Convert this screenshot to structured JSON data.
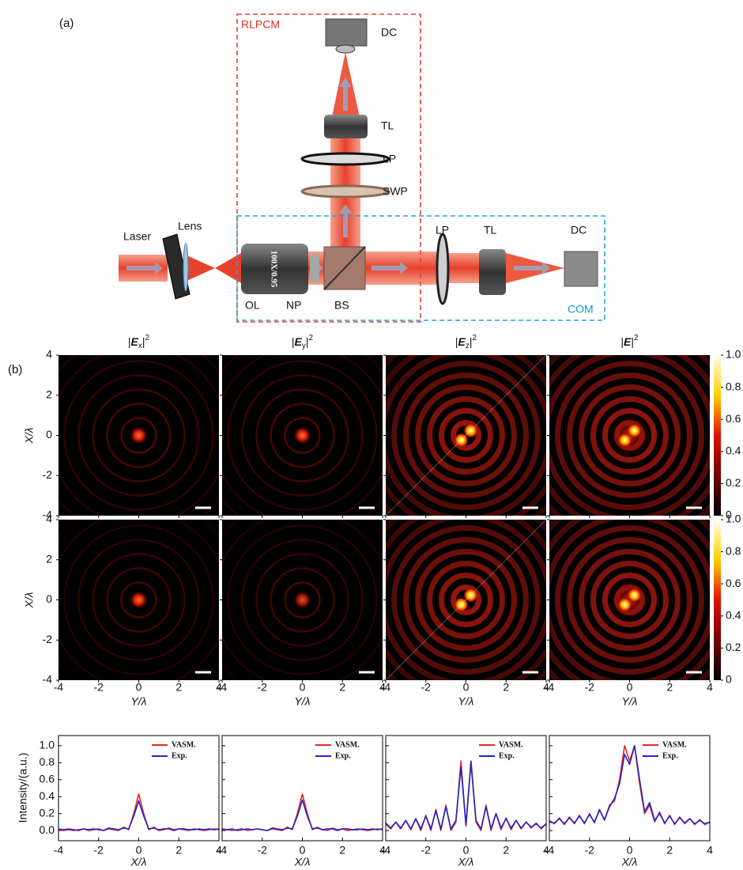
{
  "panel_a": {
    "label": "(a)",
    "rlpcm": "RLPCM",
    "com": "COM",
    "objective_text": "100X/0.95",
    "components": {
      "dc_top": "DC",
      "tl_top": "TL",
      "lp_top": "LP",
      "swp": "SWP",
      "laser": "Laser",
      "lens": "Lens",
      "ol": "OL",
      "np": "NP",
      "bs": "BS",
      "lp_right": "LP",
      "tl_right": "TL",
      "dc_right": "DC"
    }
  },
  "panel_b": {
    "label": "(b)",
    "columns": [
      {
        "bar": "|",
        "symbol": "E",
        "sub": "x",
        "sup": "2"
      },
      {
        "bar": "|",
        "symbol": "E",
        "sub": "y",
        "sup": "2"
      },
      {
        "bar": "|",
        "symbol": "E",
        "sub": "z",
        "sup": "2"
      },
      {
        "bar": "|",
        "symbol": "E",
        "sup": "2"
      }
    ],
    "heatmap_axes": {
      "xlabel": "Y/λ",
      "ylabel": "X/λ",
      "xlim": [
        -4,
        4
      ],
      "ylim": [
        -4,
        4
      ],
      "xticks": [
        -4,
        -2,
        0,
        2,
        4
      ],
      "yticks": [
        4,
        2,
        0,
        -2,
        -4
      ]
    },
    "colorbar": {
      "lim": [
        0,
        1
      ],
      "ticks": [
        {
          "value": 1,
          "label": "1.0"
        },
        0.8,
        0.6,
        0.4,
        0.2,
        0
      ]
    },
    "profiles": {
      "ylabel": "Intensity/(a.u.)",
      "xlabel": "X/λ",
      "xlim": [
        -4,
        4
      ],
      "ylim": [
        -0.12,
        1.12
      ],
      "xticks": [
        -4,
        -2,
        0,
        2,
        4
      ],
      "yticks": [
        {
          "value": 1,
          "label": "1.0"
        },
        0.8,
        0.6,
        0.4,
        0.2,
        {
          "value": 0,
          "label": "0.0"
        }
      ],
      "x": [
        -4,
        -3.75,
        -3.5,
        -3.25,
        -3,
        -2.75,
        -2.5,
        -2.25,
        -2,
        -1.75,
        -1.5,
        -1.25,
        -1,
        -0.75,
        -0.5,
        -0.25,
        0,
        0.25,
        0.5,
        0.75,
        1,
        1.25,
        1.5,
        1.75,
        2,
        2.25,
        2.5,
        2.75,
        3,
        3.25,
        3.5,
        3.75,
        4
      ],
      "plots": [
        {
          "series": [
            {
              "name": "VASM.",
              "color": "#e8261e",
              "values": [
                0.01,
                0,
                0.01,
                0,
                0.01,
                0.02,
                0,
                0.01,
                0.02,
                0,
                0.02,
                0.01,
                0,
                0.04,
                0.01,
                0.2,
                0.43,
                0.2,
                0.01,
                0.04,
                0,
                0.01,
                0.03,
                0.01,
                0.02,
                0.01,
                0,
                0.02,
                0.01,
                0,
                0.01,
                0.02,
                0.01
              ]
            },
            {
              "name": "Exp.",
              "color": "#2323c8",
              "values": [
                0.02,
                0.01,
                0.02,
                0.01,
                0,
                0.02,
                0.01,
                0.02,
                0.01,
                0,
                0.03,
                0.02,
                0.01,
                0.03,
                0.02,
                0.17,
                0.35,
                0.17,
                0.02,
                0.03,
                0.01,
                0.02,
                0.02,
                0,
                0.02,
                0.02,
                0.01,
                0.01,
                0.02,
                0.01,
                0.02,
                0.01,
                0.02
              ]
            }
          ]
        },
        {
          "series": [
            {
              "name": "VASM.",
              "color": "#e8261e",
              "values": [
                0.01,
                0.01,
                0,
                0.01,
                0.02,
                0,
                0.01,
                0.02,
                0.01,
                0,
                0.02,
                0.01,
                0,
                0.04,
                0.01,
                0.2,
                0.43,
                0.2,
                0.01,
                0.04,
                0.01,
                0,
                0.03,
                0.01,
                0.02,
                0,
                0.01,
                0.02,
                0.01,
                0,
                0.01,
                0.02,
                0.01
              ]
            },
            {
              "name": "Exp.",
              "color": "#2323c8",
              "values": [
                0.02,
                0.01,
                0.02,
                0,
                0.01,
                0.02,
                0.01,
                0.02,
                0.01,
                0,
                0.03,
                0.02,
                0.01,
                0.03,
                0.02,
                0.17,
                0.36,
                0.17,
                0.02,
                0.03,
                0.01,
                0.02,
                0.02,
                0,
                0.02,
                0.02,
                0.01,
                0.01,
                0.02,
                0.01,
                0.02,
                0.01,
                0.02
              ]
            }
          ]
        },
        {
          "series": [
            {
              "name": "VASM.",
              "color": "#e8261e",
              "values": [
                0.08,
                0.02,
                0.1,
                0.02,
                0.12,
                0.01,
                0.14,
                0,
                0.18,
                0,
                0.25,
                0,
                0.3,
                0,
                0.1,
                0.82,
                0.05,
                0.8,
                0.1,
                0,
                0.3,
                0,
                0.2,
                0.01,
                0.15,
                0.01,
                0.12,
                0.02,
                0.1,
                0.03,
                0.09,
                0.02,
                0.08
              ]
            },
            {
              "name": "Exp.",
              "color": "#2323c8",
              "values": [
                0.09,
                0.03,
                0.1,
                0.03,
                0.12,
                0.02,
                0.14,
                0.02,
                0.17,
                0.02,
                0.23,
                0.02,
                0.28,
                0.02,
                0.12,
                0.75,
                0.07,
                0.82,
                0.12,
                0.02,
                0.28,
                0.02,
                0.2,
                0.03,
                0.14,
                0.03,
                0.12,
                0.03,
                0.1,
                0.04,
                0.08,
                0.03,
                0.08
              ]
            }
          ]
        },
        {
          "series": [
            {
              "name": "VASM.",
              "color": "#e8261e",
              "values": [
                0.12,
                0.08,
                0.15,
                0.07,
                0.16,
                0.08,
                0.18,
                0.08,
                0.2,
                0.09,
                0.25,
                0.12,
                0.3,
                0.35,
                0.6,
                1.0,
                0.82,
                1.0,
                0.55,
                0.2,
                0.3,
                0.1,
                0.22,
                0.08,
                0.18,
                0.07,
                0.16,
                0.08,
                0.14,
                0.07,
                0.13,
                0.07,
                0.1
              ]
            },
            {
              "name": "Exp.",
              "color": "#2323c8",
              "values": [
                0.1,
                0.09,
                0.14,
                0.08,
                0.15,
                0.09,
                0.17,
                0.09,
                0.19,
                0.1,
                0.24,
                0.13,
                0.28,
                0.38,
                0.55,
                0.9,
                0.78,
                1.0,
                0.6,
                0.22,
                0.33,
                0.12,
                0.2,
                0.09,
                0.17,
                0.08,
                0.15,
                0.09,
                0.14,
                0.08,
                0.12,
                0.08,
                0.1
              ]
            }
          ]
        }
      ]
    }
  }
}
